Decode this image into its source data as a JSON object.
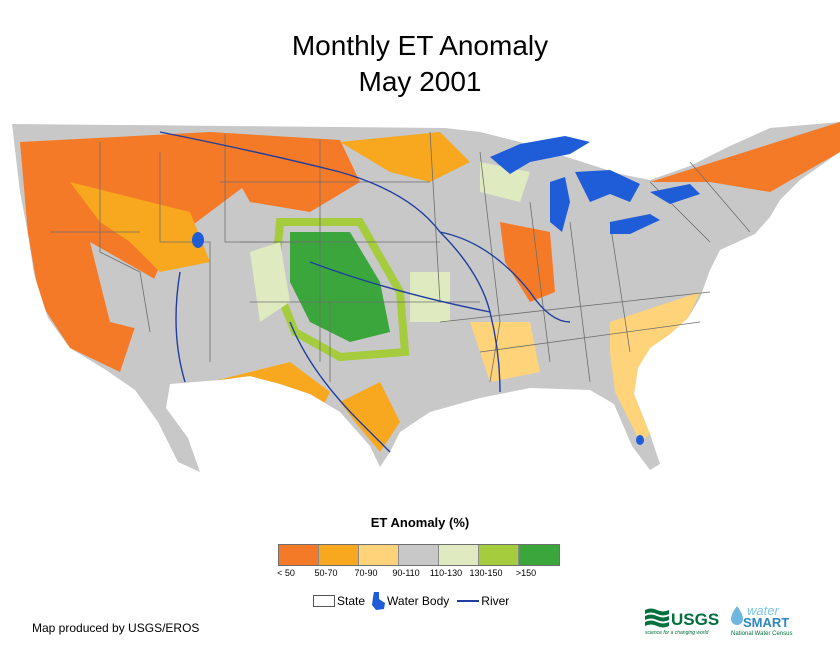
{
  "title": {
    "line1": "Monthly ET Anomaly",
    "line2": "May 2001"
  },
  "legend": {
    "title": "ET Anomaly (%)",
    "classes": [
      {
        "label": "< 50",
        "color": "#f57a28"
      },
      {
        "label": "50-70",
        "color": "#f7a81e"
      },
      {
        "label": "70-90",
        "color": "#fed37a"
      },
      {
        "label": "90-110",
        "color": "#c8c8c8"
      },
      {
        "label": "110-130",
        "color": "#dfeac0"
      },
      {
        "label": "130-150",
        "color": "#a4cc3c"
      },
      {
        "label": ">150",
        "color": "#3aa63c"
      }
    ],
    "layers": {
      "state": "State",
      "water_body": "Water Body",
      "river": "River"
    }
  },
  "colors": {
    "water": "#1f5cd8",
    "river": "#1f3ea0",
    "state_border": "#6e6e6e"
  },
  "credit": "Map produced by USGS/EROS",
  "logos": {
    "usgs": "USGS",
    "usgs_tagline": "science for a changing world",
    "water_1": "water",
    "water_2": "SMART",
    "water_tagline": "National Water Census"
  }
}
